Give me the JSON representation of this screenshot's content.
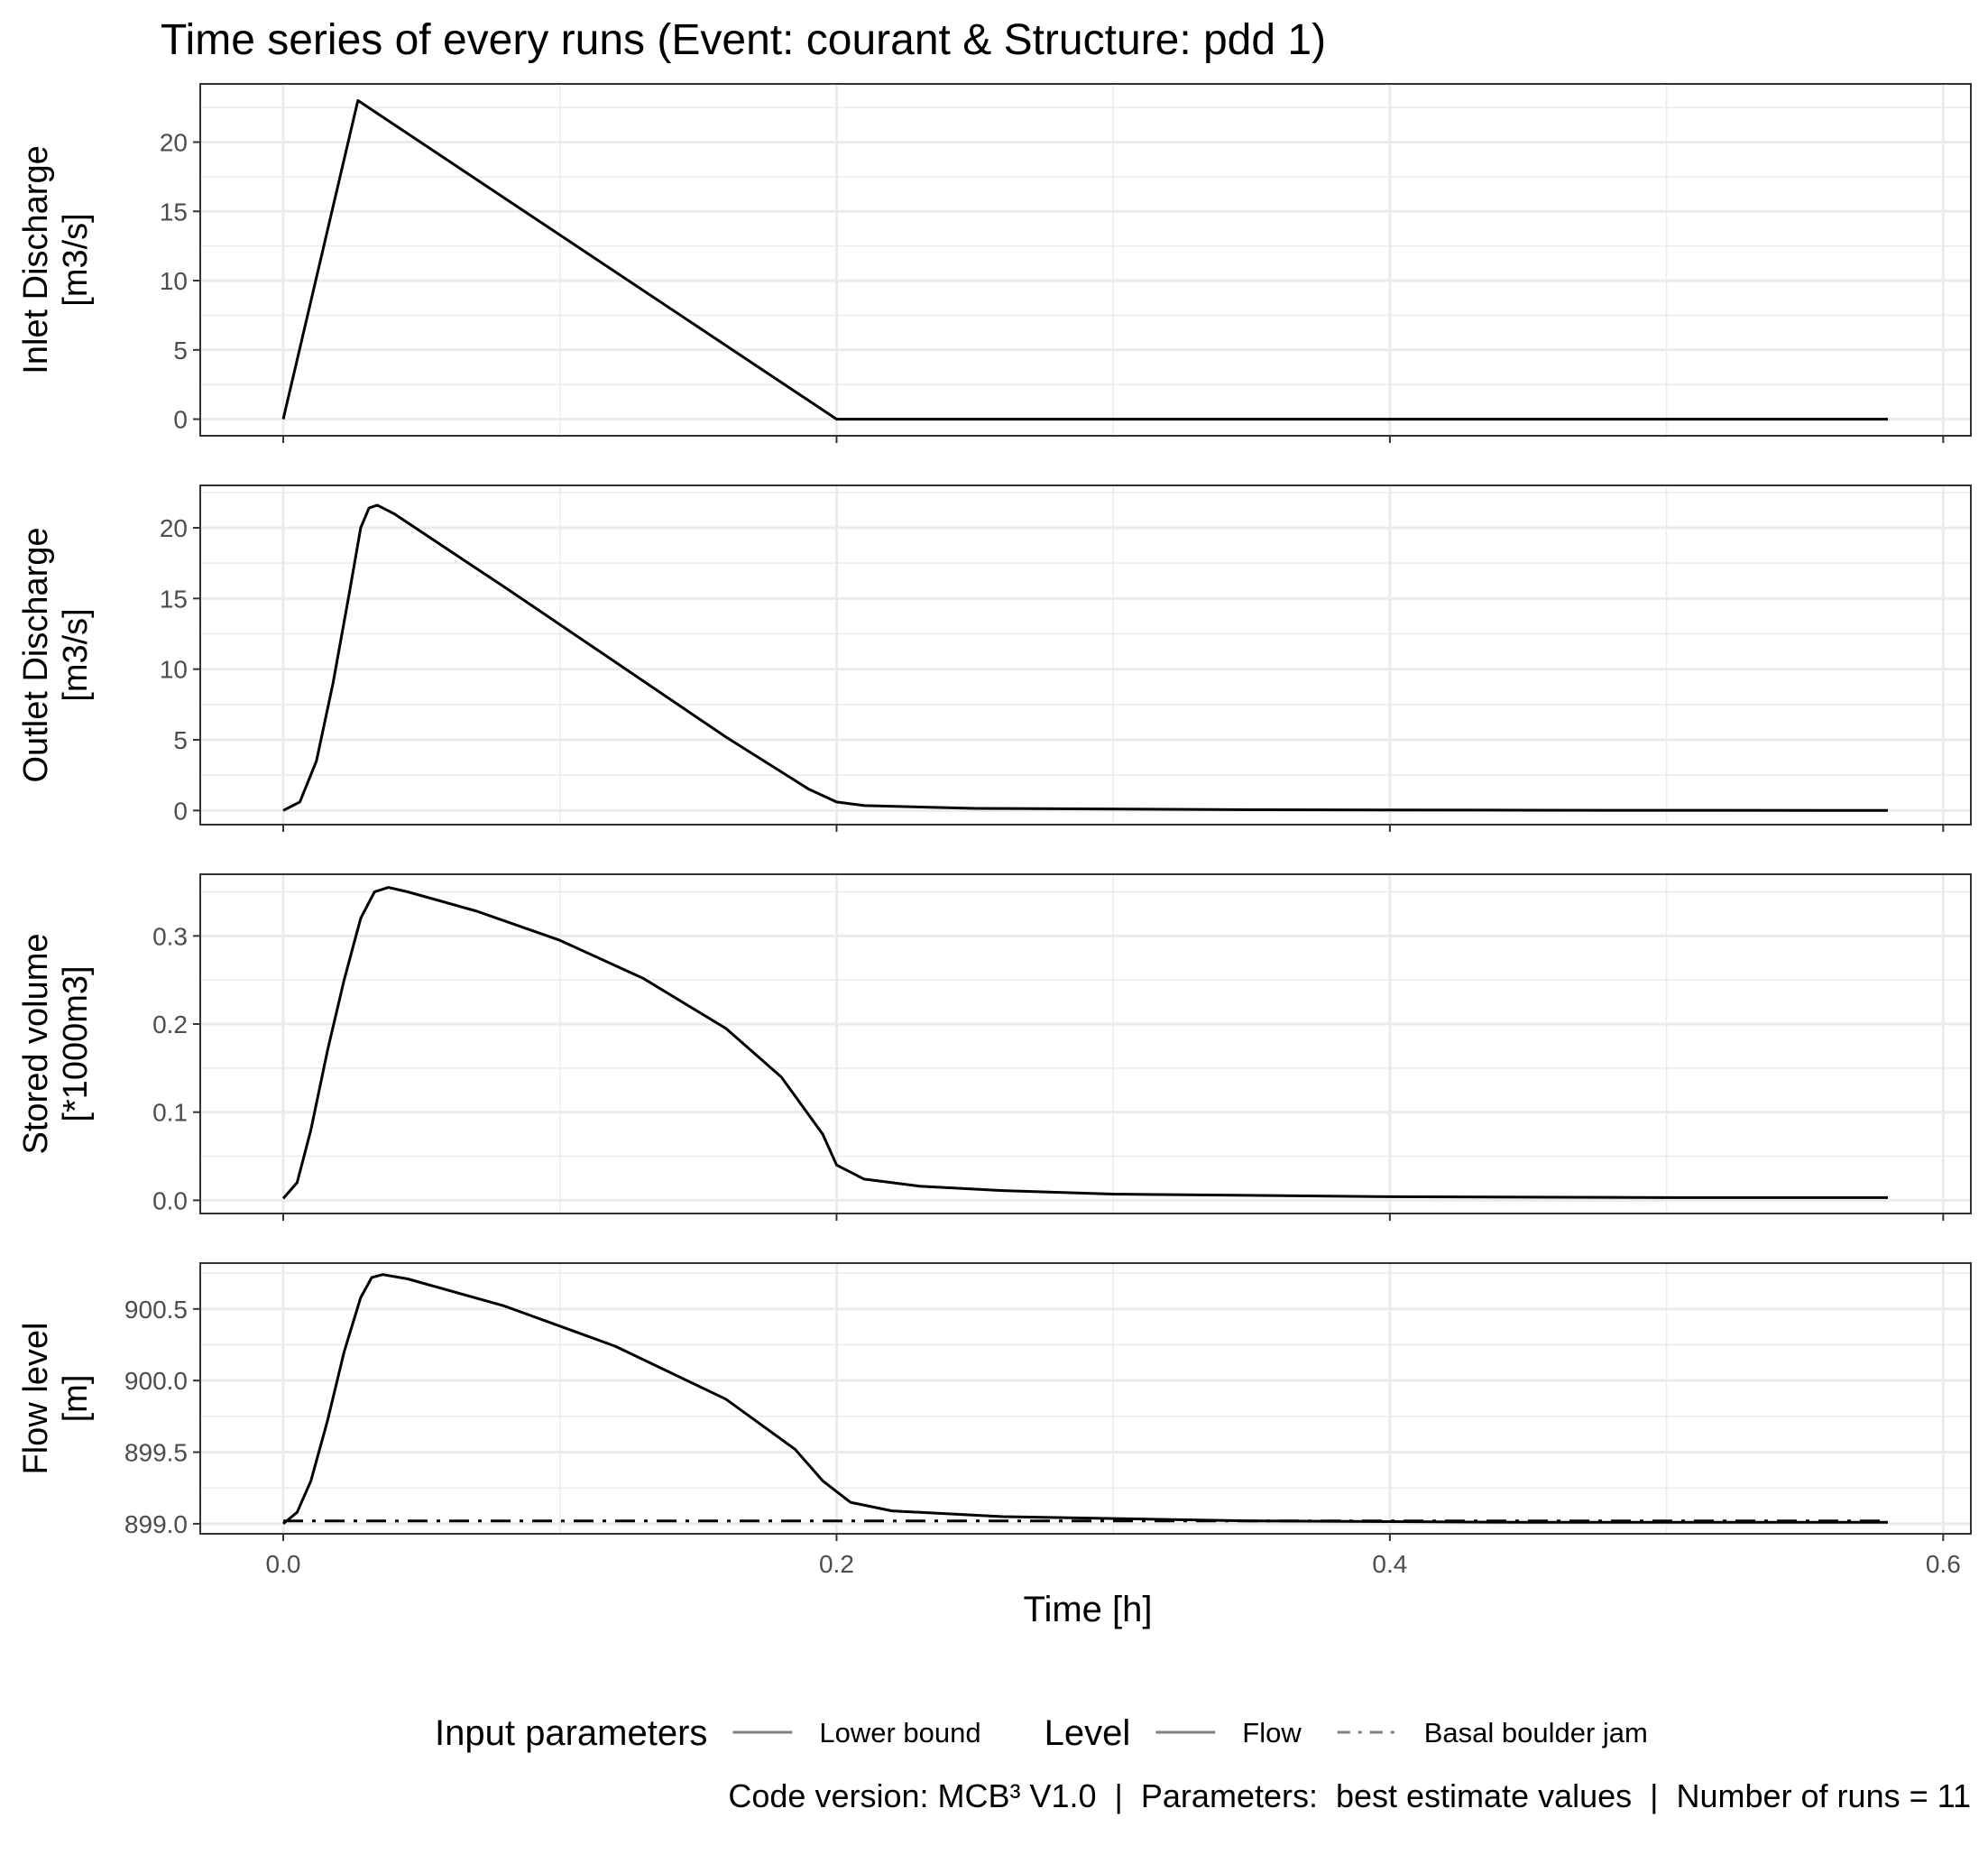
{
  "title": "Time series of every runs (Event: courant & Structure: pdd 1)",
  "caption": "Code version: MCB³ V1.0  |  Parameters:  best estimate values  |  Number of runs = 11",
  "legend": {
    "groups": [
      {
        "title": "Input parameters",
        "items": [
          {
            "label": "Lower bound",
            "style": "solid"
          }
        ]
      },
      {
        "title": "Level",
        "items": [
          {
            "label": "Flow",
            "style": "solid"
          },
          {
            "label": "Basal boulder jam",
            "style": "dashdot"
          }
        ]
      }
    ],
    "position": "bottom"
  },
  "colors": {
    "line": "#000000",
    "grid": "#ebebeb",
    "panel_border": "#333333",
    "legend_key": "#7f7f7f"
  },
  "chart_data": [
    {
      "type": "line",
      "panel": "inlet",
      "ylabel": [
        "Inlet Discharge",
        "[m3/s]"
      ],
      "xlim": [
        -0.03,
        0.61
      ],
      "ylim": [
        -1.2,
        24.2
      ],
      "y_ticks": [
        0,
        5,
        10,
        15,
        20
      ],
      "y_tick_labels": [
        "0",
        "5",
        "10",
        "15",
        "20"
      ],
      "x_ticks": [
        0.0,
        0.2,
        0.4,
        0.6
      ],
      "series": [
        {
          "style": "solid",
          "points": [
            [
              0.0,
              0.0
            ],
            [
              0.027,
              23.0
            ],
            [
              0.2,
              0.0
            ],
            [
              0.58,
              0.0
            ]
          ]
        }
      ]
    },
    {
      "type": "line",
      "panel": "outlet",
      "ylabel": [
        "Outlet Discharge",
        "[m3/s]"
      ],
      "xlim": [
        -0.03,
        0.61
      ],
      "ylim": [
        -1.0,
        23.0
      ],
      "y_ticks": [
        0,
        5,
        10,
        15,
        20
      ],
      "y_tick_labels": [
        "0",
        "5",
        "10",
        "15",
        "20"
      ],
      "x_ticks": [
        0.0,
        0.2,
        0.4,
        0.6
      ],
      "series": [
        {
          "style": "solid",
          "points": [
            [
              0.0,
              0.0
            ],
            [
              0.006,
              0.6
            ],
            [
              0.012,
              3.5
            ],
            [
              0.018,
              9.0
            ],
            [
              0.024,
              15.5
            ],
            [
              0.028,
              20.0
            ],
            [
              0.031,
              21.4
            ],
            [
              0.034,
              21.6
            ],
            [
              0.04,
              21.0
            ],
            [
              0.08,
              15.8
            ],
            [
              0.12,
              10.5
            ],
            [
              0.16,
              5.2
            ],
            [
              0.19,
              1.5
            ],
            [
              0.2,
              0.6
            ],
            [
              0.21,
              0.35
            ],
            [
              0.25,
              0.15
            ],
            [
              0.35,
              0.05
            ],
            [
              0.45,
              0.02
            ],
            [
              0.58,
              0.0
            ]
          ]
        }
      ]
    },
    {
      "type": "line",
      "panel": "stored",
      "ylabel": [
        "Stored volume",
        "[*1000m3]"
      ],
      "xlim": [
        -0.03,
        0.61
      ],
      "ylim": [
        -0.015,
        0.37
      ],
      "y_ticks": [
        0.0,
        0.1,
        0.2,
        0.3
      ],
      "y_tick_labels": [
        "0.0",
        "0.1",
        "0.2",
        "0.3"
      ],
      "x_ticks": [
        0.0,
        0.2,
        0.4,
        0.6
      ],
      "series": [
        {
          "style": "solid",
          "points": [
            [
              0.0,
              0.002
            ],
            [
              0.005,
              0.02
            ],
            [
              0.01,
              0.08
            ],
            [
              0.016,
              0.17
            ],
            [
              0.022,
              0.25
            ],
            [
              0.028,
              0.32
            ],
            [
              0.033,
              0.35
            ],
            [
              0.038,
              0.355
            ],
            [
              0.045,
              0.35
            ],
            [
              0.07,
              0.328
            ],
            [
              0.1,
              0.295
            ],
            [
              0.13,
              0.252
            ],
            [
              0.16,
              0.195
            ],
            [
              0.18,
              0.14
            ],
            [
              0.195,
              0.075
            ],
            [
              0.2,
              0.04
            ],
            [
              0.21,
              0.024
            ],
            [
              0.23,
              0.016
            ],
            [
              0.26,
              0.011
            ],
            [
              0.3,
              0.007
            ],
            [
              0.4,
              0.004
            ],
            [
              0.5,
              0.003
            ],
            [
              0.58,
              0.003
            ]
          ]
        }
      ]
    },
    {
      "type": "line",
      "panel": "flow_level",
      "ylabel": [
        "Flow level",
        "[m]"
      ],
      "xlim": [
        -0.03,
        0.61
      ],
      "ylim": [
        898.93,
        900.82
      ],
      "y_ticks": [
        899.0,
        899.5,
        900.0,
        900.5
      ],
      "y_tick_labels": [
        "899.0",
        "899.5",
        "900.0",
        "900.5"
      ],
      "x_ticks": [
        0.0,
        0.2,
        0.4,
        0.6
      ],
      "x_tick_labels": [
        "0.0",
        "0.2",
        "0.4",
        "0.6"
      ],
      "xlabel": "Time [h]",
      "series": [
        {
          "style": "solid",
          "points": [
            [
              0.0,
              899.0
            ],
            [
              0.005,
              899.08
            ],
            [
              0.01,
              899.3
            ],
            [
              0.016,
              899.72
            ],
            [
              0.022,
              900.2
            ],
            [
              0.028,
              900.58
            ],
            [
              0.032,
              900.72
            ],
            [
              0.036,
              900.74
            ],
            [
              0.045,
              900.71
            ],
            [
              0.08,
              900.52
            ],
            [
              0.12,
              900.24
            ],
            [
              0.16,
              899.87
            ],
            [
              0.185,
              899.52
            ],
            [
              0.195,
              899.3
            ],
            [
              0.205,
              899.15
            ],
            [
              0.22,
              899.09
            ],
            [
              0.26,
              899.05
            ],
            [
              0.35,
              899.02
            ],
            [
              0.45,
              899.01
            ],
            [
              0.58,
              899.01
            ]
          ]
        },
        {
          "style": "dashdot",
          "points": [
            [
              0.0,
              899.02
            ],
            [
              0.58,
              899.02
            ]
          ]
        }
      ]
    }
  ]
}
